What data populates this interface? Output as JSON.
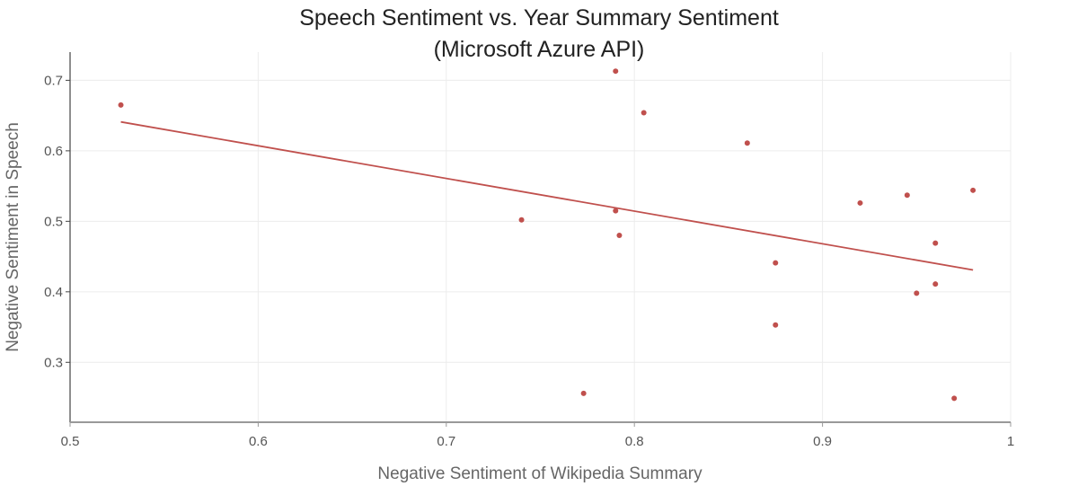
{
  "chart_data": {
    "type": "scatter",
    "title_line1": "Speech Sentiment vs. Year Summary Sentiment",
    "title_line2": "(Microsoft Azure API)",
    "xlabel": "Negative Sentiment of Wikipedia Summary",
    "ylabel": "Negative Sentiment in Speech",
    "xlim": [
      0.5,
      1.0
    ],
    "ylim": [
      0.215,
      0.74
    ],
    "x_ticks": [
      0.5,
      0.6,
      0.7,
      0.8,
      0.9,
      1.0
    ],
    "x_tick_labels": [
      "0.5",
      "0.6",
      "0.7",
      "0.8",
      "0.9",
      "1"
    ],
    "y_ticks": [
      0.3,
      0.4,
      0.5,
      0.6,
      0.7
    ],
    "y_tick_labels": [
      "0.3",
      "0.4",
      "0.5",
      "0.6",
      "0.7"
    ],
    "grid": true,
    "color": "#c0504d",
    "points": [
      {
        "x": 0.527,
        "y": 0.665
      },
      {
        "x": 0.74,
        "y": 0.502
      },
      {
        "x": 0.773,
        "y": 0.256
      },
      {
        "x": 0.79,
        "y": 0.713
      },
      {
        "x": 0.79,
        "y": 0.515
      },
      {
        "x": 0.792,
        "y": 0.48
      },
      {
        "x": 0.805,
        "y": 0.654
      },
      {
        "x": 0.86,
        "y": 0.611
      },
      {
        "x": 0.875,
        "y": 0.441
      },
      {
        "x": 0.875,
        "y": 0.353
      },
      {
        "x": 0.92,
        "y": 0.526
      },
      {
        "x": 0.945,
        "y": 0.537
      },
      {
        "x": 0.95,
        "y": 0.398
      },
      {
        "x": 0.96,
        "y": 0.469
      },
      {
        "x": 0.96,
        "y": 0.411
      },
      {
        "x": 0.97,
        "y": 0.249
      },
      {
        "x": 0.98,
        "y": 0.544
      }
    ],
    "trendline": {
      "x": [
        0.527,
        0.98
      ],
      "y": [
        0.641,
        0.431
      ]
    }
  }
}
